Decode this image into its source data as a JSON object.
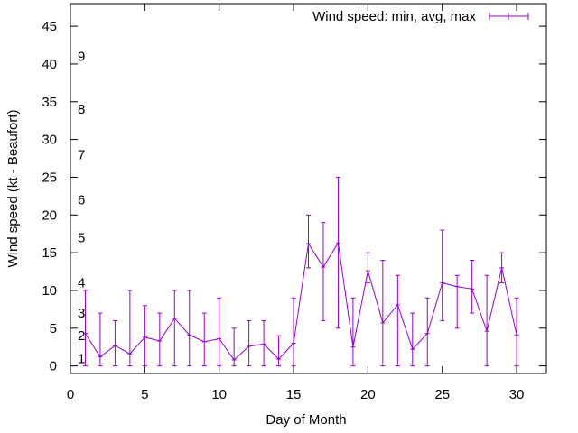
{
  "chart_data": {
    "type": "line",
    "title": "",
    "xlabel": "Day of Month",
    "ylabel": "Wind speed (kt - Beaufort)",
    "xlim": [
      0,
      32
    ],
    "ylim": [
      -1,
      48
    ],
    "xticks": [
      0,
      5,
      10,
      15,
      20,
      25,
      30
    ],
    "yticks": [
      0,
      5,
      10,
      15,
      20,
      25,
      30,
      35,
      40,
      45
    ],
    "grid": false,
    "legend": "top-right",
    "series": [
      {
        "name": "Wind speed: min, avg, max",
        "color": "#9400d3",
        "x": [
          1,
          2,
          3,
          4,
          5,
          6,
          7,
          8,
          9,
          10,
          11,
          12,
          13,
          14,
          15,
          16,
          17,
          18,
          19,
          20,
          21,
          22,
          23,
          24,
          25,
          26,
          27,
          28,
          29,
          30
        ],
        "avg": [
          4.3,
          1.2,
          2.7,
          1.6,
          3.8,
          3.3,
          6.3,
          4.1,
          3.2,
          3.6,
          0.8,
          2.6,
          2.9,
          0.9,
          3.0,
          16.2,
          13.1,
          16.3,
          2.5,
          12.6,
          5.7,
          8.1,
          2.2,
          4.3,
          11.0,
          10.5,
          10.2,
          4.6,
          13.0,
          4.1
        ],
        "min": [
          0,
          0,
          0,
          0,
          0,
          0,
          0,
          0,
          0,
          0,
          0,
          0,
          0,
          0,
          0,
          13,
          6,
          5,
          0,
          11,
          0,
          0,
          0,
          0,
          6,
          5,
          7,
          0,
          11,
          0
        ],
        "max": [
          10,
          7,
          6,
          10,
          8,
          7,
          10,
          10,
          7,
          9,
          5,
          6,
          6,
          4,
          9,
          20,
          19,
          25,
          9,
          15,
          14,
          12,
          7,
          9,
          18,
          12,
          14,
          12,
          15,
          9
        ]
      }
    ],
    "annotations": [
      {
        "text": "1",
        "y": 1.0
      },
      {
        "text": "2",
        "y": 4.0
      },
      {
        "text": "3",
        "y": 7.0
      },
      {
        "text": "4",
        "y": 11.0
      },
      {
        "text": "5",
        "y": 17.0
      },
      {
        "text": "6",
        "y": 22.0
      },
      {
        "text": "7",
        "y": 28.0
      },
      {
        "text": "8",
        "y": 34.0
      },
      {
        "text": "9",
        "y": 41.0
      }
    ]
  }
}
